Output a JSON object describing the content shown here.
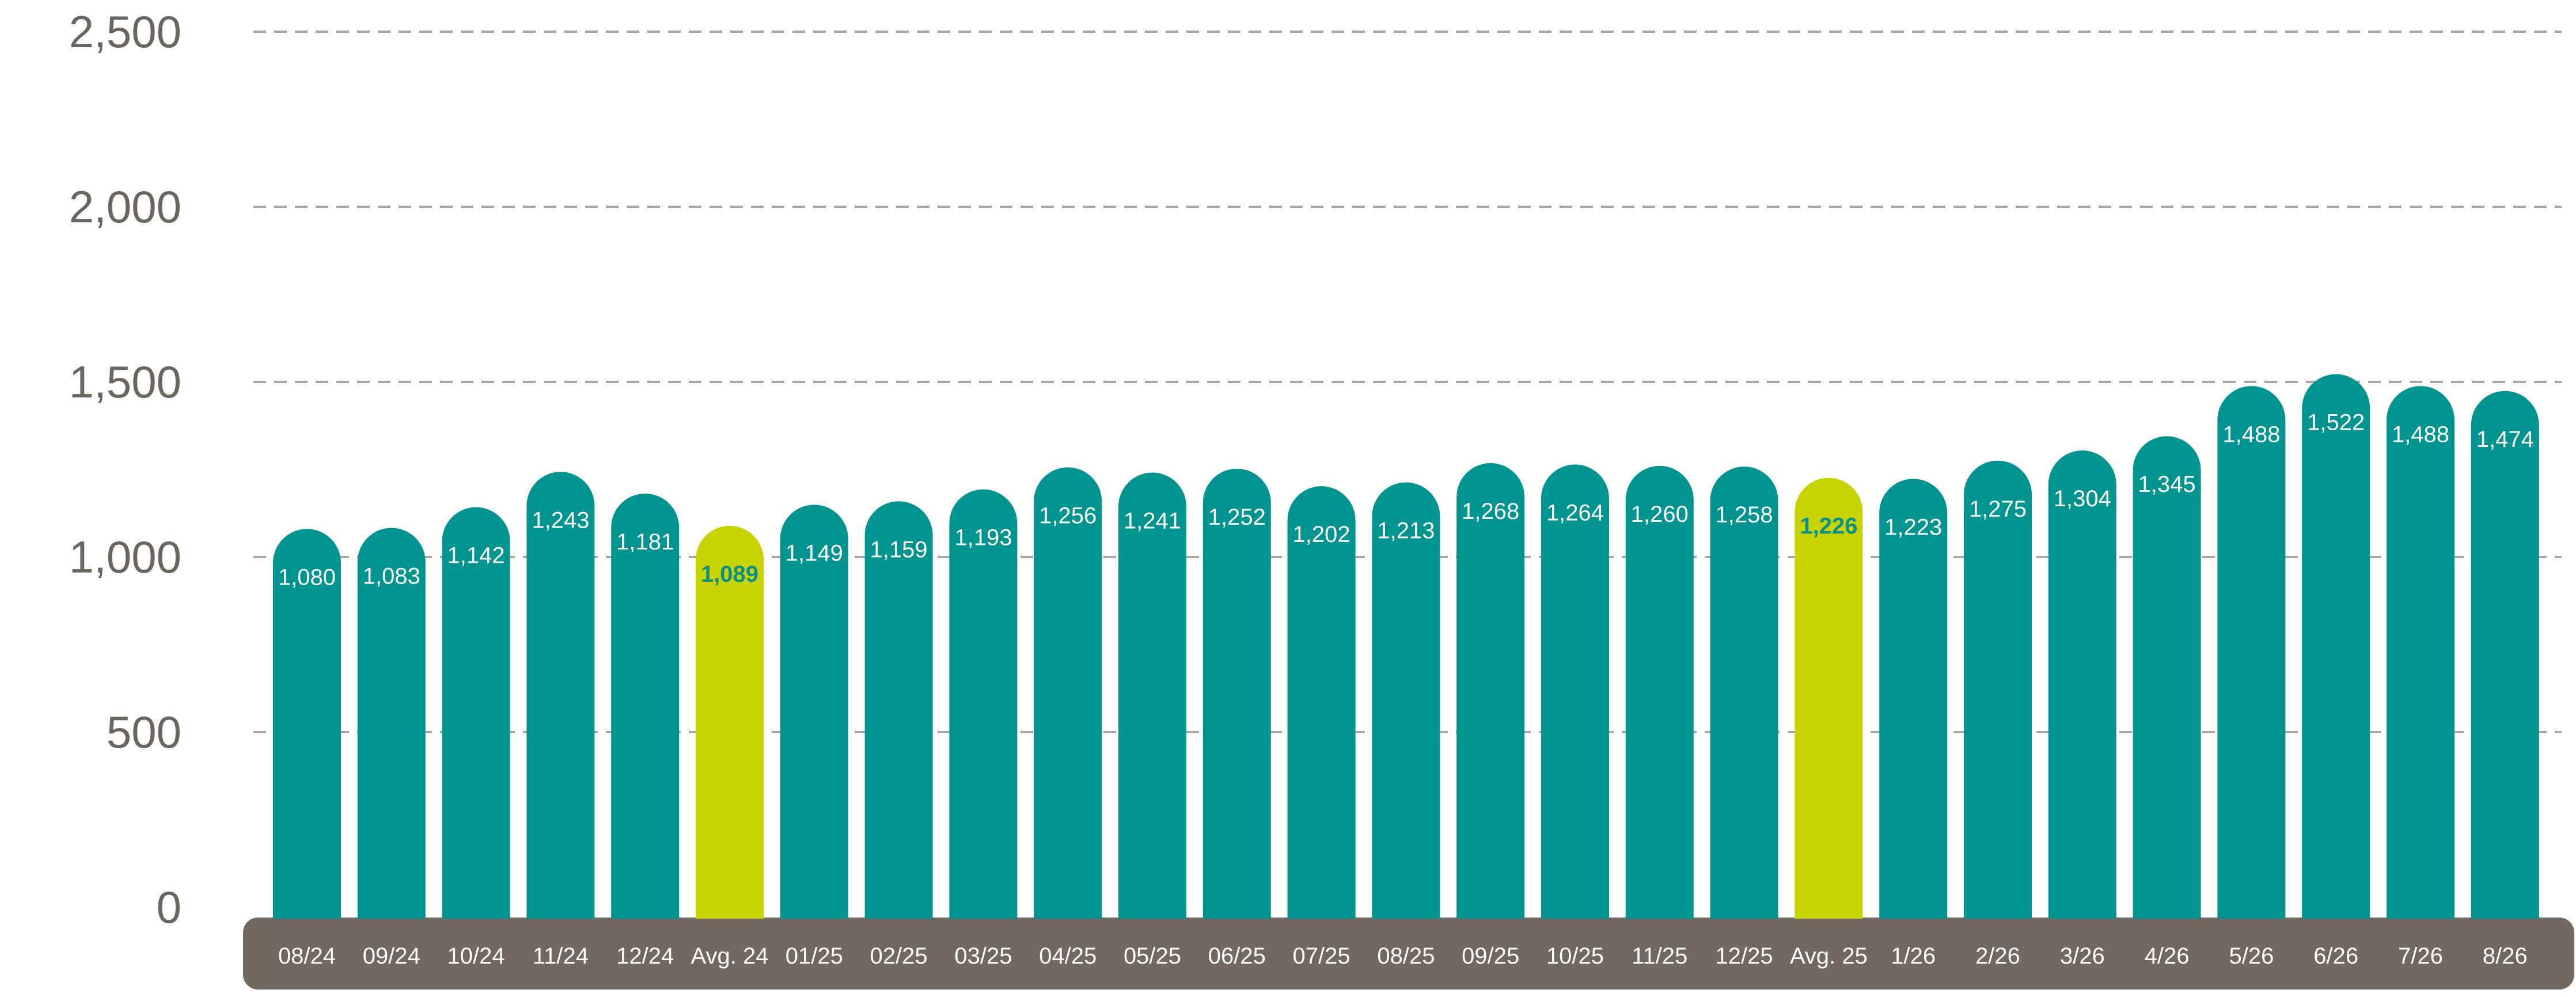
{
  "chart_data": {
    "type": "bar",
    "categories": [
      "08/24",
      "09/24",
      "10/24",
      "11/24",
      "12/24",
      "Avg. 24",
      "01/25",
      "02/25",
      "03/25",
      "04/25",
      "05/25",
      "06/25",
      "07/25",
      "08/25",
      "09/25",
      "10/25",
      "11/25",
      "12/25",
      "Avg. 25",
      "1/26",
      "2/26",
      "3/26",
      "4/26",
      "5/26",
      "6/26",
      "7/26",
      "8/26"
    ],
    "values": [
      1080,
      1083,
      1142,
      1243,
      1181,
      1089,
      1149,
      1159,
      1193,
      1256,
      1241,
      1252,
      1202,
      1213,
      1268,
      1264,
      1260,
      1258,
      1226,
      1223,
      1275,
      1304,
      1345,
      1488,
      1522,
      1488,
      1474
    ],
    "value_labels": [
      "1,080",
      "1,083",
      "1,142",
      "1,243",
      "1,181",
      "1,089",
      "1,149",
      "1,159",
      "1,193",
      "1,256",
      "1,241",
      "1,252",
      "1,202",
      "1,213",
      "1,268",
      "1,264",
      "1,260",
      "1,258",
      "1,226",
      "1,223",
      "1,275",
      "1,304",
      "1,345",
      "1,488",
      "1,522",
      "1,488",
      "1,474"
    ],
    "highlight": [
      "Avg. 24",
      "Avg. 25"
    ],
    "yticks": [
      0,
      500,
      1000,
      1500,
      2000,
      2500
    ],
    "ytick_labels": [
      "0",
      "500",
      "1,000",
      "1,500",
      "2,000",
      "2,500"
    ],
    "ylim": [
      0,
      2500
    ],
    "grid": true,
    "title": "",
    "xlabel": "",
    "ylabel": "",
    "colors": {
      "bar": "#009490",
      "highlight": "#c8d400",
      "axis_band": "#716861",
      "grid": "#a6a6a6",
      "tick_text": "#6b6560",
      "highlight_label": "#0b8f8a"
    }
  }
}
